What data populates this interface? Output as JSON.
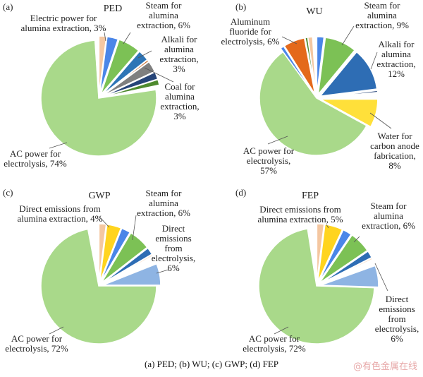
{
  "caption": "(a) PED; (b) WU; (c) GWP; (d) FEP",
  "watermark": "@有色金属在线",
  "chart_data": [
    {
      "type": "pie",
      "panel": "(a)",
      "title": "PED",
      "slices": [
        {
          "name": "Peach (unlabeled)",
          "value": 2,
          "color": "#F4C7A1"
        },
        {
          "name": "Electric power for alumina extraction",
          "value": 3,
          "color": "#4A86E8"
        },
        {
          "name": "Steam for alumina extraction",
          "value": 6,
          "color": "#7CC155"
        },
        {
          "name": "Alkali for alumina extraction",
          "value": 3,
          "color": "#2E75B6"
        },
        {
          "name": "Orange (unlabeled)",
          "value": 0.5,
          "color": "#C55A11"
        },
        {
          "name": "Coal for alumina extraction",
          "value": 3,
          "color": "#7F7F7F"
        },
        {
          "name": "Dark blue (unlabeled)",
          "value": 2,
          "color": "#264478"
        },
        {
          "name": "Dark green (unlabeled)",
          "value": 1.5,
          "color": "#4E8A2E"
        },
        {
          "name": "White (unlabeled)",
          "value": 1,
          "color": "#FFFFFF"
        },
        {
          "name": "AC power for electrolysis",
          "value": 74,
          "color": "#A9D98A"
        },
        {
          "name": "White gap (unlabeled)",
          "value": 1,
          "color": "#FFFFFF"
        }
      ],
      "labels": [
        {
          "lines": [
            "Electric power for",
            "alumina extraction, 3%"
          ]
        },
        {
          "lines": [
            "Steam for",
            "alumina",
            "extraction, 6%"
          ]
        },
        {
          "lines": [
            "Alkali for",
            "alumina",
            "extraction,",
            "3%"
          ]
        },
        {
          "lines": [
            "Coal for",
            "alumina",
            "extraction,",
            "3%"
          ]
        },
        {
          "lines": [
            "AC power for",
            "electrolysis, 74%"
          ]
        }
      ]
    },
    {
      "type": "pie",
      "panel": "(b)",
      "title": "WU",
      "slices": [
        {
          "name": "Blue (unlabeled)",
          "value": 2,
          "color": "#4A86E8"
        },
        {
          "name": "Steam for alumina extraction",
          "value": 9,
          "color": "#7CC155"
        },
        {
          "name": "Alkali for alumina extraction",
          "value": 12,
          "color": "#2E6DB4"
        },
        {
          "name": "Dark blue (unlabeled)",
          "value": 0.5,
          "color": "#264478"
        },
        {
          "name": "White (unlabeled)",
          "value": 1.5,
          "color": "#FFFFFF"
        },
        {
          "name": "Water for carbon anode fabrication",
          "value": 8,
          "color": "#FFE03A"
        },
        {
          "name": "AC power for electrolysis",
          "value": 57,
          "color": "#A9D98A"
        },
        {
          "name": "Blue small (unlabeled)",
          "value": 1,
          "color": "#4A86E8"
        },
        {
          "name": "Aluminum fluoride for electrolysis",
          "value": 6,
          "color": "#E4691B"
        },
        {
          "name": "Green small (unlabeled)",
          "value": 0.7,
          "color": "#4E8A2E"
        },
        {
          "name": "Peach (unlabeled)",
          "value": 1.3,
          "color": "#F4C7A1"
        },
        {
          "name": "White gap (unlabeled)",
          "value": 1,
          "color": "#FFFFFF"
        }
      ],
      "labels": [
        {
          "lines": [
            "Aluminum",
            "fluoride for",
            "electrolysis, 6%"
          ]
        },
        {
          "lines": [
            "Steam for",
            "alumina",
            "extraction, 9%"
          ]
        },
        {
          "lines": [
            "Alkali for",
            "alumina",
            "extraction,",
            "12%"
          ]
        },
        {
          "lines": [
            "Water for",
            "carbon anode",
            "fabrication,",
            "8%"
          ]
        },
        {
          "lines": [
            "AC power for",
            "electrolysis,",
            "57%"
          ]
        }
      ]
    },
    {
      "type": "pie",
      "panel": "(c)",
      "title": "GWP",
      "slices": [
        {
          "name": "Peach (unlabeled)",
          "value": 2,
          "color": "#F4C7A1"
        },
        {
          "name": "Direct emissions from alumina extraction",
          "value": 4,
          "color": "#FFD41F"
        },
        {
          "name": "Blue (unlabeled)",
          "value": 2.5,
          "color": "#4A86E8"
        },
        {
          "name": "Steam for alumina extraction",
          "value": 6,
          "color": "#7CC155"
        },
        {
          "name": "Dark blue (unlabeled)",
          "value": 2,
          "color": "#2E6DB4"
        },
        {
          "name": "Light peach (unlabeled)",
          "value": 0.5,
          "color": "#FBE3CF"
        },
        {
          "name": "White (unlabeled)",
          "value": 2,
          "color": "#FFFFFF"
        },
        {
          "name": "Direct emissions from electrolysis",
          "value": 6,
          "color": "#8EB4E3"
        },
        {
          "name": "AC power for electrolysis",
          "value": 72,
          "color": "#A9D98A"
        },
        {
          "name": "White gap (unlabeled)",
          "value": 3,
          "color": "#FFFFFF"
        }
      ],
      "labels": [
        {
          "lines": [
            "Direct emissions from",
            "alumina extraction, 4%"
          ]
        },
        {
          "lines": [
            "Steam for",
            "alumina",
            "extraction, 6%"
          ]
        },
        {
          "lines": [
            "Direct",
            "emissions",
            "from",
            "electrolysis,",
            "6%"
          ]
        },
        {
          "lines": [
            "AC power for",
            "electrolysis, 72%"
          ]
        }
      ]
    },
    {
      "type": "pie",
      "panel": "(d)",
      "title": "FEP",
      "slices": [
        {
          "name": "Peach (unlabeled)",
          "value": 2,
          "color": "#F4C7A1"
        },
        {
          "name": "Direct emissions from alumina extraction",
          "value": 5,
          "color": "#FFD41F"
        },
        {
          "name": "Blue (unlabeled)",
          "value": 2.5,
          "color": "#4A86E8"
        },
        {
          "name": "Steam for alumina extraction",
          "value": 6,
          "color": "#7CC155"
        },
        {
          "name": "Dark blue (unlabeled)",
          "value": 2,
          "color": "#2E6DB4"
        },
        {
          "name": "Light peach (unlabeled)",
          "value": 0.5,
          "color": "#FBE3CF"
        },
        {
          "name": "White (unlabeled)",
          "value": 1.5,
          "color": "#FFFFFF"
        },
        {
          "name": "Direct emissions from electrolysis",
          "value": 6,
          "color": "#8EB4E3"
        },
        {
          "name": "AC power for electrolysis",
          "value": 72,
          "color": "#A9D98A"
        },
        {
          "name": "White gap (unlabeled)",
          "value": 2.5,
          "color": "#FFFFFF"
        }
      ],
      "labels": [
        {
          "lines": [
            "Direct emissions from",
            "alumina extraction, 5%"
          ]
        },
        {
          "lines": [
            "Steam for",
            "alumina",
            "extraction, 6%"
          ]
        },
        {
          "lines": [
            "Direct",
            "emissions",
            "from",
            "electrolysis,",
            "6%"
          ]
        },
        {
          "lines": [
            "AC power for",
            "electrolysis, 72%"
          ]
        }
      ]
    }
  ]
}
